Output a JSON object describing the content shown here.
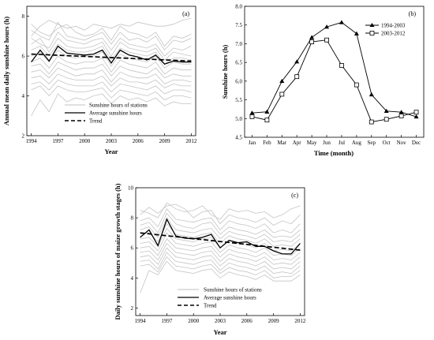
{
  "chart_data": [
    {
      "id": "a",
      "panel_label": "(a)",
      "type": "line",
      "xlabel": "Year",
      "ylabel": "Annual mean daily sunshine hours (h)",
      "xlim": [
        1993.5,
        2012.5
      ],
      "ylim": [
        2,
        8.5
      ],
      "xticks": [
        1994,
        1997,
        2000,
        2003,
        2006,
        2009,
        2012
      ],
      "yticks": [
        2,
        4,
        6,
        8
      ],
      "x": [
        1994,
        1995,
        1996,
        1997,
        1998,
        1999,
        2000,
        2001,
        2002,
        2003,
        2004,
        2005,
        2006,
        2007,
        2008,
        2009,
        2010,
        2011,
        2012
      ],
      "average": [
        5.7,
        6.3,
        5.75,
        6.5,
        6.15,
        6.1,
        6.05,
        6.1,
        6.3,
        5.65,
        6.3,
        6.05,
        5.95,
        5.8,
        6.05,
        5.6,
        5.75,
        5.7,
        5.7
      ],
      "trend": [
        6.1,
        5.75
      ],
      "stations": [
        [
          7.0,
          7.5,
          7.8,
          7.6,
          7.4,
          7.5,
          7.3,
          7.6,
          7.5,
          7.4,
          7.6,
          7.5,
          7.7,
          7.6,
          7.5,
          7.5,
          7.6,
          7.8,
          7.9
        ],
        [
          7.6,
          7.2,
          7.0,
          7.4,
          7.6,
          7.2,
          7.0,
          7.1,
          7.4,
          6.8,
          7.5,
          7.2,
          7.1,
          6.9,
          7.2,
          6.5,
          7.0,
          6.9,
          7.1
        ],
        [
          7.3,
          7.0,
          6.8,
          7.7,
          7.0,
          6.9,
          6.8,
          7.0,
          7.2,
          6.6,
          7.2,
          6.8,
          6.9,
          6.7,
          7.0,
          6.3,
          6.8,
          6.7,
          6.9
        ],
        [
          6.9,
          6.6,
          6.4,
          7.2,
          6.8,
          6.7,
          6.6,
          6.8,
          6.9,
          6.3,
          6.9,
          6.6,
          6.5,
          6.4,
          6.6,
          6.0,
          6.4,
          6.3,
          6.5
        ],
        [
          6.6,
          6.9,
          6.2,
          6.9,
          6.5,
          6.4,
          6.4,
          6.5,
          6.7,
          6.0,
          6.7,
          6.4,
          6.3,
          6.2,
          6.4,
          5.8,
          6.2,
          6.1,
          6.0
        ],
        [
          6.3,
          6.5,
          6.0,
          6.6,
          6.3,
          6.2,
          6.2,
          6.3,
          6.5,
          5.8,
          6.4,
          6.2,
          6.1,
          6.0,
          6.2,
          5.6,
          5.9,
          5.9,
          5.8
        ],
        [
          6.0,
          6.2,
          5.7,
          6.3,
          6.0,
          5.9,
          6.0,
          6.0,
          6.2,
          5.5,
          6.1,
          5.9,
          5.8,
          5.7,
          6.0,
          5.4,
          5.7,
          5.6,
          5.6
        ],
        [
          5.7,
          5.9,
          5.4,
          6.0,
          5.7,
          5.6,
          5.7,
          5.7,
          5.9,
          5.2,
          5.8,
          5.6,
          5.5,
          5.4,
          5.7,
          5.1,
          5.4,
          5.3,
          5.3
        ],
        [
          5.5,
          5.6,
          5.1,
          5.7,
          5.5,
          5.3,
          5.4,
          5.4,
          5.6,
          5.0,
          5.5,
          5.3,
          5.2,
          5.1,
          5.4,
          4.9,
          5.1,
          5.0,
          5.0
        ],
        [
          5.2,
          5.3,
          4.9,
          5.4,
          5.2,
          5.0,
          5.1,
          5.1,
          5.3,
          4.7,
          5.2,
          5.0,
          4.9,
          4.9,
          5.1,
          4.6,
          4.8,
          4.8,
          4.7
        ],
        [
          4.9,
          5.0,
          4.6,
          5.1,
          4.9,
          4.8,
          4.8,
          4.8,
          5.0,
          4.5,
          4.9,
          4.7,
          4.7,
          4.6,
          4.8,
          4.4,
          4.6,
          4.5,
          4.5
        ],
        [
          4.6,
          4.7,
          4.3,
          4.8,
          4.6,
          4.5,
          4.5,
          4.5,
          4.7,
          4.2,
          4.6,
          4.5,
          4.4,
          4.3,
          4.5,
          4.1,
          4.3,
          4.3,
          4.2
        ],
        [
          4.3,
          4.5,
          4.0,
          4.5,
          4.3,
          4.2,
          4.2,
          4.3,
          4.4,
          3.9,
          4.3,
          4.2,
          4.1,
          4.0,
          4.2,
          3.8,
          4.0,
          4.0,
          3.9
        ],
        [
          3.0,
          3.8,
          3.2,
          4.1,
          3.7,
          3.9,
          3.8,
          4.0,
          4.1,
          3.6,
          4.0,
          3.8,
          3.9,
          3.7,
          3.9,
          3.5,
          3.7,
          3.6,
          3.6
        ]
      ],
      "legend": {
        "placement": "bottom-center",
        "stations": "Sunshine hours of stations",
        "average": "Average sunshine hours",
        "trend": "Trend"
      }
    },
    {
      "id": "b",
      "panel_label": "(b)",
      "type": "line",
      "xlabel": "Time (month)",
      "ylabel": "Sunshine hours (h)",
      "ylim": [
        4.5,
        8.0
      ],
      "yticks": [
        4.5,
        5.0,
        5.5,
        6.0,
        6.5,
        7.0,
        7.5,
        8.0
      ],
      "ytick_labels": [
        "4.5",
        "5.0",
        "5.5",
        "6.0",
        "6.5",
        "7.0",
        "7.5",
        "8.0"
      ],
      "categories": [
        "Jan",
        "Feb",
        "Mar",
        "Apr",
        "May",
        "Jun",
        "Jul",
        "Aug",
        "Sep",
        "Oct",
        "Nov",
        "Dec"
      ],
      "series": [
        {
          "name": "1994-2003",
          "marker": "filled-triangle",
          "values": [
            5.15,
            5.18,
            6.0,
            6.52,
            7.17,
            7.45,
            7.57,
            7.27,
            5.64,
            5.2,
            5.17,
            5.05
          ]
        },
        {
          "name": "2003-2012",
          "marker": "open-square",
          "values": [
            5.05,
            4.96,
            5.65,
            6.12,
            7.05,
            7.1,
            6.42,
            5.9,
            4.91,
            4.98,
            5.07,
            5.17
          ]
        }
      ],
      "legend": {
        "placement": "top-right"
      }
    },
    {
      "id": "c",
      "panel_label": "(c)",
      "type": "line",
      "xlabel": "Year",
      "ylabel": "Daily sunshine hours of maize growth stages (h)",
      "xlim": [
        1993.5,
        2012.5
      ],
      "ylim": [
        1.5,
        10
      ],
      "xticks": [
        1994,
        1997,
        2000,
        2003,
        2006,
        2009,
        2012
      ],
      "yticks": [
        2,
        4,
        6,
        8,
        10
      ],
      "x": [
        1994,
        1995,
        1996,
        1997,
        1998,
        1999,
        2000,
        2001,
        2002,
        2003,
        2004,
        2005,
        2006,
        2007,
        2008,
        2009,
        2010,
        2011,
        2012
      ],
      "average": [
        6.7,
        7.2,
        6.15,
        7.9,
        6.8,
        6.65,
        6.6,
        6.7,
        6.9,
        6.0,
        6.5,
        6.35,
        6.4,
        6.1,
        6.1,
        5.8,
        5.6,
        5.6,
        6.3
      ],
      "trend": [
        7.0,
        5.85
      ],
      "stations": [
        [
          8.5,
          8.3,
          8.0,
          9.0,
          8.6,
          8.4,
          8.5,
          8.8,
          8.2,
          7.9,
          8.6,
          8.4,
          8.5,
          8.3,
          8.4,
          8.0,
          8.2,
          8.6,
          8.8
        ],
        [
          8.2,
          8.7,
          8.3,
          8.8,
          8.9,
          8.6,
          8.0,
          8.4,
          8.5,
          7.6,
          8.2,
          8.0,
          7.9,
          7.7,
          8.0,
          7.5,
          7.8,
          7.6,
          8.2
        ],
        [
          7.8,
          8.0,
          7.4,
          8.6,
          7.9,
          7.8,
          7.7,
          7.9,
          8.0,
          7.2,
          7.8,
          7.6,
          7.5,
          7.3,
          7.6,
          7.0,
          7.2,
          7.0,
          7.6
        ],
        [
          7.5,
          7.7,
          7.0,
          8.3,
          7.6,
          7.4,
          7.3,
          7.6,
          7.7,
          6.9,
          7.4,
          7.2,
          7.1,
          6.9,
          7.2,
          6.7,
          6.8,
          6.7,
          7.2
        ],
        [
          7.2,
          7.4,
          6.7,
          8.0,
          7.2,
          7.1,
          7.0,
          7.2,
          7.3,
          6.6,
          7.1,
          6.9,
          6.8,
          6.6,
          6.9,
          6.4,
          6.5,
          6.4,
          6.9
        ],
        [
          6.9,
          7.0,
          6.4,
          7.6,
          6.9,
          6.8,
          6.7,
          6.9,
          7.0,
          6.3,
          6.8,
          6.6,
          6.5,
          6.3,
          6.6,
          6.1,
          6.2,
          6.1,
          6.6
        ],
        [
          6.6,
          6.7,
          6.1,
          7.3,
          6.6,
          6.5,
          6.4,
          6.6,
          6.7,
          6.0,
          6.5,
          6.3,
          6.2,
          6.0,
          6.3,
          5.8,
          5.9,
          5.8,
          6.3
        ],
        [
          6.3,
          6.4,
          5.8,
          7.0,
          6.3,
          6.2,
          6.1,
          6.3,
          6.4,
          5.7,
          6.2,
          6.0,
          5.9,
          5.7,
          6.0,
          5.5,
          5.6,
          5.5,
          6.0
        ],
        [
          6.0,
          6.1,
          5.5,
          6.6,
          6.0,
          5.9,
          5.8,
          6.0,
          6.1,
          5.4,
          5.9,
          5.7,
          5.6,
          5.4,
          5.7,
          5.2,
          5.3,
          5.2,
          5.7
        ],
        [
          5.7,
          5.8,
          5.2,
          6.3,
          5.7,
          5.6,
          5.5,
          5.7,
          5.8,
          5.1,
          5.6,
          5.4,
          5.3,
          5.1,
          5.4,
          4.9,
          5.0,
          4.9,
          5.4
        ],
        [
          5.4,
          5.5,
          4.9,
          6.0,
          5.4,
          5.3,
          5.2,
          5.4,
          5.5,
          4.8,
          5.3,
          5.1,
          5.0,
          4.8,
          5.1,
          4.6,
          4.7,
          4.6,
          5.1
        ],
        [
          5.1,
          5.2,
          4.6,
          5.7,
          5.1,
          5.0,
          4.9,
          5.1,
          5.2,
          4.5,
          5.0,
          4.8,
          4.7,
          4.5,
          4.8,
          4.3,
          4.4,
          4.3,
          4.8
        ],
        [
          4.8,
          4.9,
          4.4,
          5.4,
          4.8,
          4.7,
          4.6,
          4.8,
          4.9,
          4.3,
          4.7,
          4.5,
          4.4,
          4.2,
          4.5,
          4.0,
          4.1,
          4.1,
          4.5
        ],
        [
          3.0,
          4.5,
          4.2,
          5.1,
          4.5,
          4.4,
          4.3,
          4.5,
          4.6,
          4.0,
          4.4,
          4.2,
          4.1,
          3.9,
          4.2,
          3.8,
          3.8,
          3.8,
          4.2
        ]
      ],
      "legend": {
        "placement": "bottom-center",
        "stations": "Sunshine hours of stations",
        "average": "Average sunshine hours",
        "trend": "Trend"
      }
    }
  ]
}
